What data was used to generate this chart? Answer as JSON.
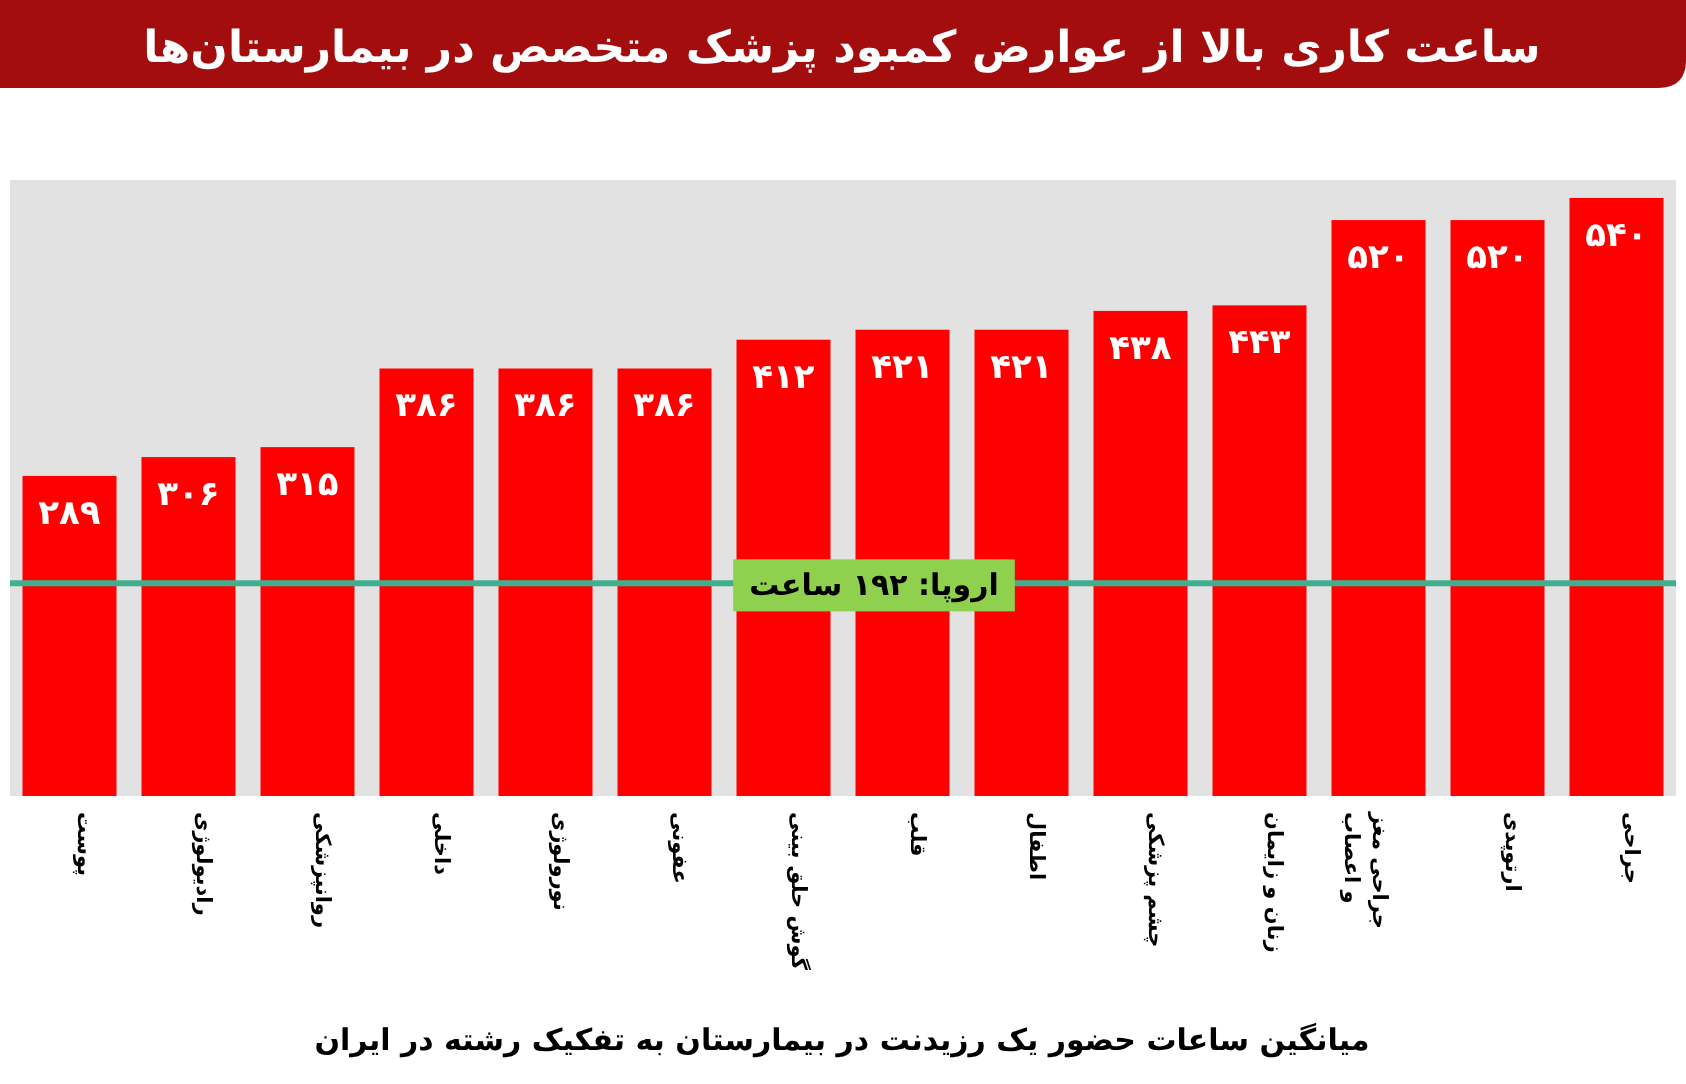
{
  "chart_data": {
    "type": "bar",
    "title": "ساعت کاری بالا از عوارض کمبود پزشک متخصص در بیمارستان‌ها",
    "xlabel": "میانگین ساعات حضور یک رزیدنت در بیمارستان به تفکیک رشته در ایران",
    "categories": [
      "پوست",
      "رادیولوژی",
      "روانپزشکی",
      "داخلی",
      "نورولوژی",
      "عفونی",
      "گوش حلق بینی",
      "قلب",
      "اطفال",
      "چشم پزشکی",
      "زنان و زایمان",
      "جراحی مغز و اعصاب",
      "ارتوپدی",
      "جراحی"
    ],
    "values": [
      289,
      306,
      315,
      386,
      386,
      386,
      412,
      421,
      421,
      438,
      443,
      520,
      520,
      540
    ],
    "value_labels": [
      "۲۸۹",
      "۳۰۶",
      "۳۱۵",
      "۳۸۶",
      "۳۸۶",
      "۳۸۶",
      "۴۱۲",
      "۴۲۱",
      "۴۲۱",
      "۴۳۸",
      "۴۴۳",
      "۵۲۰",
      "۵۲۰",
      "۵۴۰"
    ],
    "color": "#ff0000",
    "ref_lines": [
      {
        "axis": "y",
        "value": 192,
        "label": "اروپا: ۱۹۲ ساعت",
        "color": "#3fb08f"
      }
    ]
  }
}
